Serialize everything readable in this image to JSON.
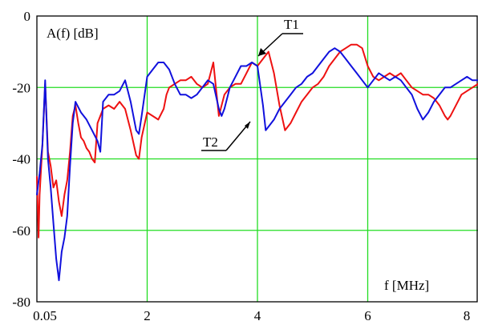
{
  "chart_data": {
    "type": "line",
    "xlabel": "f  [MHz]",
    "ylabel": "A(f)  [dB]",
    "xlim": [
      0,
      8
    ],
    "ylim": [
      -80,
      0
    ],
    "x_ticks": [
      {
        "value": 0.05,
        "label": "0.05"
      },
      {
        "value": 2,
        "label": "2"
      },
      {
        "value": 4,
        "label": "4"
      },
      {
        "value": 6,
        "label": "6"
      },
      {
        "value": 8,
        "label": "8"
      }
    ],
    "y_ticks": [
      {
        "value": 0,
        "label": "0"
      },
      {
        "value": -20,
        "label": "-20"
      },
      {
        "value": -40,
        "label": "-40"
      },
      {
        "value": -60,
        "label": "-60"
      },
      {
        "value": -80,
        "label": "-80"
      }
    ],
    "grid": true,
    "colors": {
      "grid": "#22dd22",
      "T1": "#ee1111",
      "T2": "#1111dd"
    },
    "annotations": [
      {
        "text": "T1",
        "points_to": {
          "x": 4.2,
          "y": -10
        }
      },
      {
        "text": "T2",
        "points_to": {
          "x": 4.1,
          "y": -31
        }
      }
    ],
    "series": [
      {
        "name": "T1",
        "color": "#ee1111",
        "x": [
          0,
          0.03,
          0.05,
          0.1,
          0.15,
          0.2,
          0.25,
          0.3,
          0.35,
          0.4,
          0.45,
          0.5,
          0.55,
          0.6,
          0.65,
          0.7,
          0.75,
          0.8,
          0.85,
          0.9,
          0.95,
          1.0,
          1.05,
          1.1,
          1.15,
          1.2,
          1.3,
          1.4,
          1.5,
          1.6,
          1.7,
          1.8,
          1.85,
          1.9,
          2.0,
          2.1,
          2.2,
          2.3,
          2.35,
          2.4,
          2.5,
          2.6,
          2.7,
          2.8,
          2.9,
          3.0,
          3.1,
          3.2,
          3.3,
          3.4,
          3.5,
          3.6,
          3.7,
          3.8,
          3.9,
          4.0,
          4.1,
          4.2,
          4.3,
          4.4,
          4.5,
          4.6,
          4.7,
          4.8,
          4.9,
          5.0,
          5.1,
          5.2,
          5.3,
          5.4,
          5.5,
          5.6,
          5.7,
          5.8,
          5.9,
          6.0,
          6.1,
          6.2,
          6.3,
          6.4,
          6.5,
          6.6,
          6.7,
          6.8,
          6.9,
          7.0,
          7.1,
          7.2,
          7.3,
          7.4,
          7.45,
          7.5,
          7.6,
          7.7,
          7.8,
          7.9,
          8.0
        ],
        "y": [
          -45,
          -62,
          -50,
          -36,
          -19,
          -38,
          -42,
          -48,
          -46,
          -52,
          -56,
          -50,
          -46,
          -38,
          -28,
          -25,
          -30,
          -34,
          -35,
          -37,
          -38,
          -40,
          -41,
          -30,
          -28,
          -26,
          -25,
          -26,
          -24,
          -26,
          -32,
          -39,
          -40,
          -34,
          -27,
          -28,
          -29,
          -26,
          -22,
          -20,
          -19,
          -18,
          -18,
          -17,
          -19,
          -20,
          -19,
          -13,
          -28,
          -22,
          -20,
          -19,
          -19,
          -16,
          -13,
          -14,
          -12,
          -10,
          -16,
          -25,
          -32,
          -30,
          -27,
          -24,
          -22,
          -20,
          -19,
          -17,
          -14,
          -12,
          -10,
          -9,
          -8,
          -8,
          -9,
          -14,
          -17,
          -18,
          -17,
          -16,
          -17,
          -16,
          -18,
          -20,
          -21,
          -22,
          -22,
          -23,
          -25,
          -28,
          -29,
          -28,
          -25,
          -22,
          -21,
          -20,
          -19
        ]
      },
      {
        "name": "T2",
        "color": "#1111dd",
        "x": [
          0,
          0.05,
          0.1,
          0.15,
          0.2,
          0.25,
          0.3,
          0.35,
          0.4,
          0.45,
          0.5,
          0.55,
          0.6,
          0.65,
          0.7,
          0.8,
          0.9,
          1.0,
          1.1,
          1.15,
          1.2,
          1.3,
          1.4,
          1.5,
          1.6,
          1.7,
          1.8,
          1.85,
          1.9,
          2.0,
          2.1,
          2.2,
          2.3,
          2.4,
          2.5,
          2.6,
          2.7,
          2.8,
          2.9,
          3.0,
          3.1,
          3.2,
          3.3,
          3.35,
          3.4,
          3.5,
          3.6,
          3.7,
          3.8,
          3.9,
          4.0,
          4.1,
          4.15,
          4.2,
          4.3,
          4.4,
          4.5,
          4.6,
          4.7,
          4.8,
          4.9,
          5.0,
          5.1,
          5.2,
          5.3,
          5.4,
          5.5,
          5.6,
          5.7,
          5.8,
          5.9,
          6.0,
          6.1,
          6.2,
          6.3,
          6.4,
          6.5,
          6.6,
          6.7,
          6.8,
          6.9,
          7.0,
          7.1,
          7.2,
          7.3,
          7.4,
          7.5,
          7.6,
          7.7,
          7.8,
          7.9,
          8.0
        ],
        "y": [
          -50,
          -44,
          -36,
          -18,
          -40,
          -48,
          -58,
          -68,
          -74,
          -66,
          -62,
          -56,
          -42,
          -30,
          -24,
          -27,
          -29,
          -32,
          -35,
          -38,
          -24,
          -22,
          -22,
          -21,
          -18,
          -24,
          -32,
          -33,
          -28,
          -17,
          -15,
          -13,
          -13,
          -15,
          -19,
          -22,
          -22,
          -23,
          -22,
          -20,
          -18,
          -19,
          -26,
          -28,
          -26,
          -20,
          -17,
          -14,
          -14,
          -13,
          -14,
          -25,
          -32,
          -31,
          -29,
          -26,
          -24,
          -22,
          -20,
          -19,
          -17,
          -16,
          -14,
          -12,
          -10,
          -9,
          -10,
          -12,
          -14,
          -16,
          -18,
          -20,
          -18,
          -16,
          -17,
          -18,
          -17,
          -18,
          -20,
          -22,
          -26,
          -29,
          -27,
          -24,
          -22,
          -20,
          -20,
          -19,
          -18,
          -17,
          -18,
          -18
        ]
      }
    ]
  }
}
